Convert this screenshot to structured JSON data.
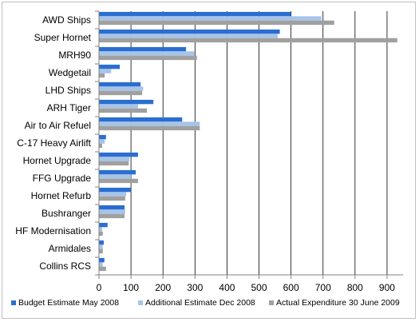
{
  "chart_data": {
    "type": "bar",
    "orientation": "horizontal",
    "categories": [
      "AWD Ships",
      "Super Hornet",
      "MRH90",
      "Wedgetail",
      "LHD Ships",
      "ARH Tiger",
      "Air to Air Refuel",
      "C-17 Heavy Airlift",
      "Hornet Upgrade",
      "FFG Upgrade",
      "Hornet Refurb",
      "Bushranger",
      "HF Modernisation",
      "Armidales",
      "Collins RCS"
    ],
    "series": [
      {
        "name": "Budget Estimate May 2008",
        "color": "#2a6ed0",
        "values": [
          600,
          565,
          272,
          65,
          130,
          170,
          260,
          22,
          122,
          115,
          100,
          80,
          27,
          15,
          17
        ]
      },
      {
        "name": "Additional Estimate Dec 2008",
        "color": "#a7c4e8",
        "values": [
          695,
          558,
          298,
          38,
          138,
          122,
          315,
          18,
          95,
          100,
          85,
          82,
          10,
          12,
          12
        ]
      },
      {
        "name": "Actual Expenditure 30 June 2009",
        "color": "#a0a0a0",
        "values": [
          735,
          932,
          306,
          18,
          135,
          150,
          315,
          10,
          93,
          122,
          82,
          80,
          12,
          12,
          22
        ]
      }
    ],
    "xlim": [
      0,
      950
    ],
    "xticks": [
      0,
      100,
      200,
      300,
      400,
      500,
      600,
      700,
      800,
      900
    ],
    "grid": "vertical",
    "legend_position": "bottom"
  }
}
